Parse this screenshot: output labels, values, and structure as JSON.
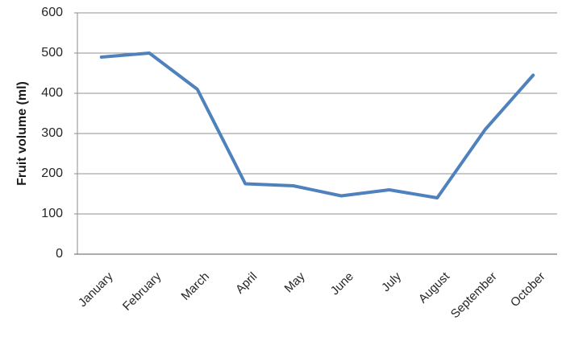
{
  "chart_data": {
    "type": "line",
    "title": "",
    "categories": [
      "January",
      "February",
      "March",
      "April",
      "May",
      "June",
      "July",
      "August",
      "September",
      "October"
    ],
    "series": [
      {
        "name": "Fruit volume",
        "values": [
          490,
          500,
          410,
          175,
          170,
          145,
          160,
          140,
          310,
          445
        ]
      }
    ],
    "xlabel": "",
    "ylabel": "Fruit volume (ml)",
    "ylim": [
      0,
      600
    ],
    "y_ticks": [
      0,
      100,
      200,
      300,
      400,
      500,
      600
    ],
    "grid": true,
    "legend_position": "none",
    "line_color": "#4F81BD",
    "gridline_color": "#919191",
    "y_axis_color": "#8c8c8c",
    "x_axis_color": "#595959",
    "tick_label_color": "#262626"
  }
}
